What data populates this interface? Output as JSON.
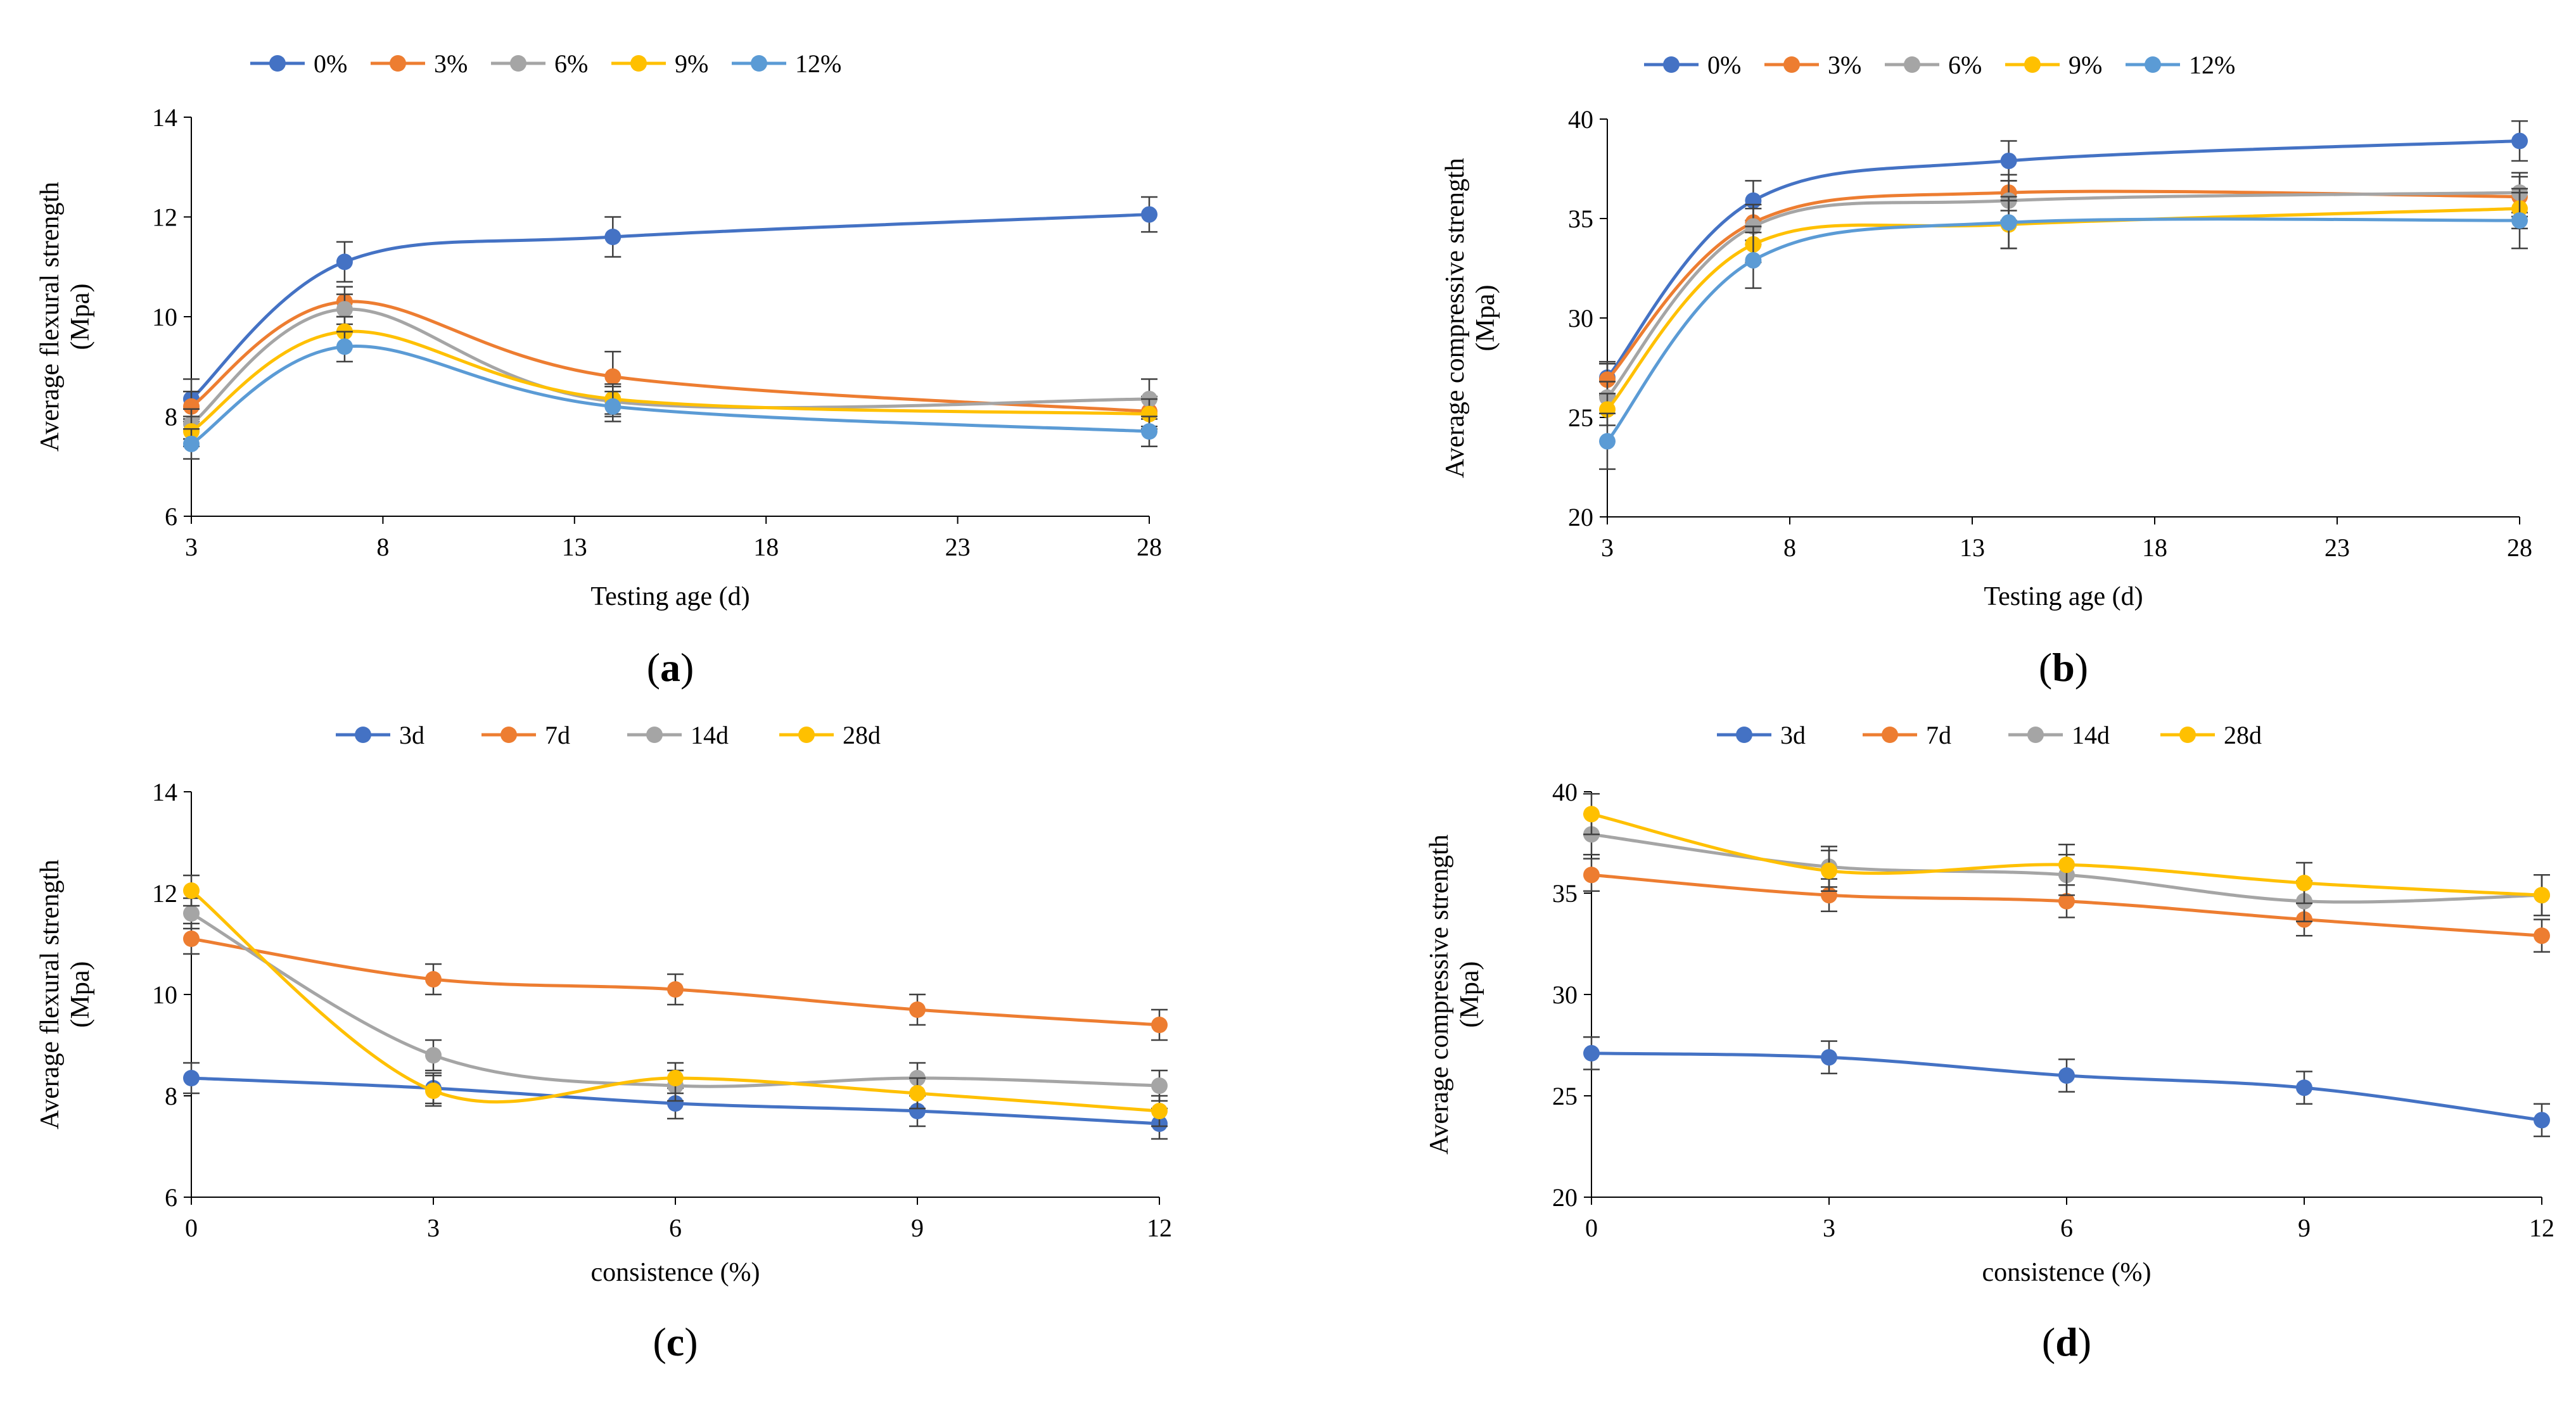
{
  "chart_data": [
    {
      "id": "a",
      "caption": "(a)",
      "caption_letter": "a",
      "type": "line",
      "ylabel_lines": [
        "Average flexural strength",
        "(Mpa)"
      ],
      "xlabel": "Testing age (d)",
      "xlim": [
        3,
        28
      ],
      "ylim": [
        6,
        14
      ],
      "x_ticks": [
        3,
        8,
        13,
        18,
        23,
        28
      ],
      "y_ticks": [
        6,
        8,
        10,
        12,
        14
      ],
      "x": [
        3,
        7,
        14,
        28
      ],
      "series": [
        {
          "name": "0%",
          "color": "#4472C4",
          "values": [
            8.35,
            11.1,
            11.6,
            12.05
          ],
          "errors": [
            0.4,
            0.4,
            0.4,
            0.35
          ]
        },
        {
          "name": "3%",
          "color": "#ED7D31",
          "values": [
            8.2,
            10.3,
            8.8,
            8.1
          ],
          "errors": [
            0.3,
            0.3,
            0.5,
            0.3
          ]
        },
        {
          "name": "6%",
          "color": "#A5A5A5",
          "values": [
            7.85,
            10.15,
            8.3,
            8.35
          ],
          "errors": [
            0.3,
            0.3,
            0.3,
            0.4
          ]
        },
        {
          "name": "9%",
          "color": "#FFC000",
          "values": [
            7.7,
            9.7,
            8.35,
            8.05
          ],
          "errors": [
            0.3,
            0.3,
            0.3,
            0.3
          ]
        },
        {
          "name": "12%",
          "color": "#5B9BD5",
          "values": [
            7.45,
            9.4,
            8.2,
            7.7
          ],
          "errors": [
            0.3,
            0.3,
            0.3,
            0.3
          ]
        }
      ]
    },
    {
      "id": "b",
      "caption": "(b)",
      "caption_letter": "b",
      "type": "line",
      "ylabel_lines": [
        "Average compressive strength",
        "(Mpa)"
      ],
      "xlabel": "Testing age (d)",
      "xlim": [
        3,
        28
      ],
      "ylim": [
        20,
        40
      ],
      "x_ticks": [
        3,
        8,
        13,
        18,
        23,
        28
      ],
      "y_ticks": [
        20,
        25,
        30,
        35,
        40
      ],
      "x": [
        3,
        7,
        14,
        28
      ],
      "series": [
        {
          "name": "0%",
          "color": "#4472C4",
          "values": [
            27.0,
            35.9,
            37.9,
            38.9
          ],
          "errors": [
            0.8,
            1.0,
            1.0,
            1.0
          ]
        },
        {
          "name": "3%",
          "color": "#ED7D31",
          "values": [
            26.9,
            34.8,
            36.3,
            36.1
          ],
          "errors": [
            0.8,
            0.9,
            0.9,
            1.0
          ]
        },
        {
          "name": "6%",
          "color": "#A5A5A5",
          "values": [
            26.0,
            34.6,
            35.9,
            36.3
          ],
          "errors": [
            0.8,
            0.9,
            1.0,
            1.0
          ]
        },
        {
          "name": "9%",
          "color": "#FFC000",
          "values": [
            25.4,
            33.7,
            34.7,
            35.5
          ],
          "errors": [
            0.8,
            0.9,
            1.2,
            1.0
          ]
        },
        {
          "name": "12%",
          "color": "#5B9BD5",
          "values": [
            23.8,
            32.9,
            34.8,
            34.9
          ],
          "errors": [
            1.4,
            1.4,
            1.3,
            1.4
          ]
        }
      ]
    },
    {
      "id": "c",
      "caption": "(c)",
      "caption_letter": "c",
      "type": "line",
      "ylabel_lines": [
        "Average flexural strength",
        "(Mpa)"
      ],
      "xlabel": "consistence (%)",
      "xlim": [
        0,
        12
      ],
      "ylim": [
        6,
        14
      ],
      "x_ticks": [
        0,
        3,
        6,
        9,
        12
      ],
      "y_ticks": [
        6,
        8,
        10,
        12,
        14
      ],
      "x": [
        0,
        3,
        6,
        9,
        12
      ],
      "series": [
        {
          "name": "3d",
          "color": "#4472C4",
          "values": [
            8.35,
            8.15,
            7.85,
            7.7,
            7.45
          ],
          "errors": [
            0.3,
            0.3,
            0.3,
            0.3,
            0.3
          ]
        },
        {
          "name": "7d",
          "color": "#ED7D31",
          "values": [
            11.1,
            10.3,
            10.1,
            9.7,
            9.4
          ],
          "errors": [
            0.3,
            0.3,
            0.3,
            0.3,
            0.3
          ]
        },
        {
          "name": "14d",
          "color": "#A5A5A5",
          "values": [
            11.6,
            8.8,
            8.2,
            8.35,
            8.2
          ],
          "errors": [
            0.3,
            0.3,
            0.3,
            0.3,
            0.3
          ]
        },
        {
          "name": "28d",
          "color": "#FFC000",
          "values": [
            12.05,
            8.1,
            8.35,
            8.05,
            7.7
          ],
          "errors": [
            0.3,
            0.3,
            0.3,
            0.3,
            0.3
          ]
        }
      ]
    },
    {
      "id": "d",
      "caption": "(d)",
      "caption_letter": "d",
      "type": "line",
      "ylabel_lines": [
        "Average compressive strength",
        "(Mpa)"
      ],
      "xlabel": "consistence (%)",
      "xlim": [
        0,
        12
      ],
      "ylim": [
        20,
        40
      ],
      "x_ticks": [
        0,
        3,
        6,
        9,
        12
      ],
      "y_ticks": [
        20,
        25,
        30,
        35,
        40
      ],
      "x": [
        0,
        3,
        6,
        9,
        12
      ],
      "series": [
        {
          "name": "3d",
          "color": "#4472C4",
          "values": [
            27.1,
            26.9,
            26.0,
            25.4,
            23.8
          ],
          "errors": [
            0.8,
            0.8,
            0.8,
            0.8,
            0.8
          ]
        },
        {
          "name": "7d",
          "color": "#ED7D31",
          "values": [
            35.9,
            34.9,
            34.6,
            33.7,
            32.9
          ],
          "errors": [
            0.8,
            0.8,
            0.8,
            0.8,
            0.8
          ]
        },
        {
          "name": "14d",
          "color": "#A5A5A5",
          "values": [
            37.9,
            36.3,
            35.9,
            34.6,
            34.9
          ],
          "errors": [
            1.0,
            1.0,
            1.0,
            1.0,
            1.0
          ]
        },
        {
          "name": "28d",
          "color": "#FFC000",
          "values": [
            38.9,
            36.1,
            36.4,
            35.5,
            34.9
          ],
          "errors": [
            1.0,
            1.0,
            1.0,
            1.0,
            1.0
          ]
        }
      ]
    }
  ]
}
